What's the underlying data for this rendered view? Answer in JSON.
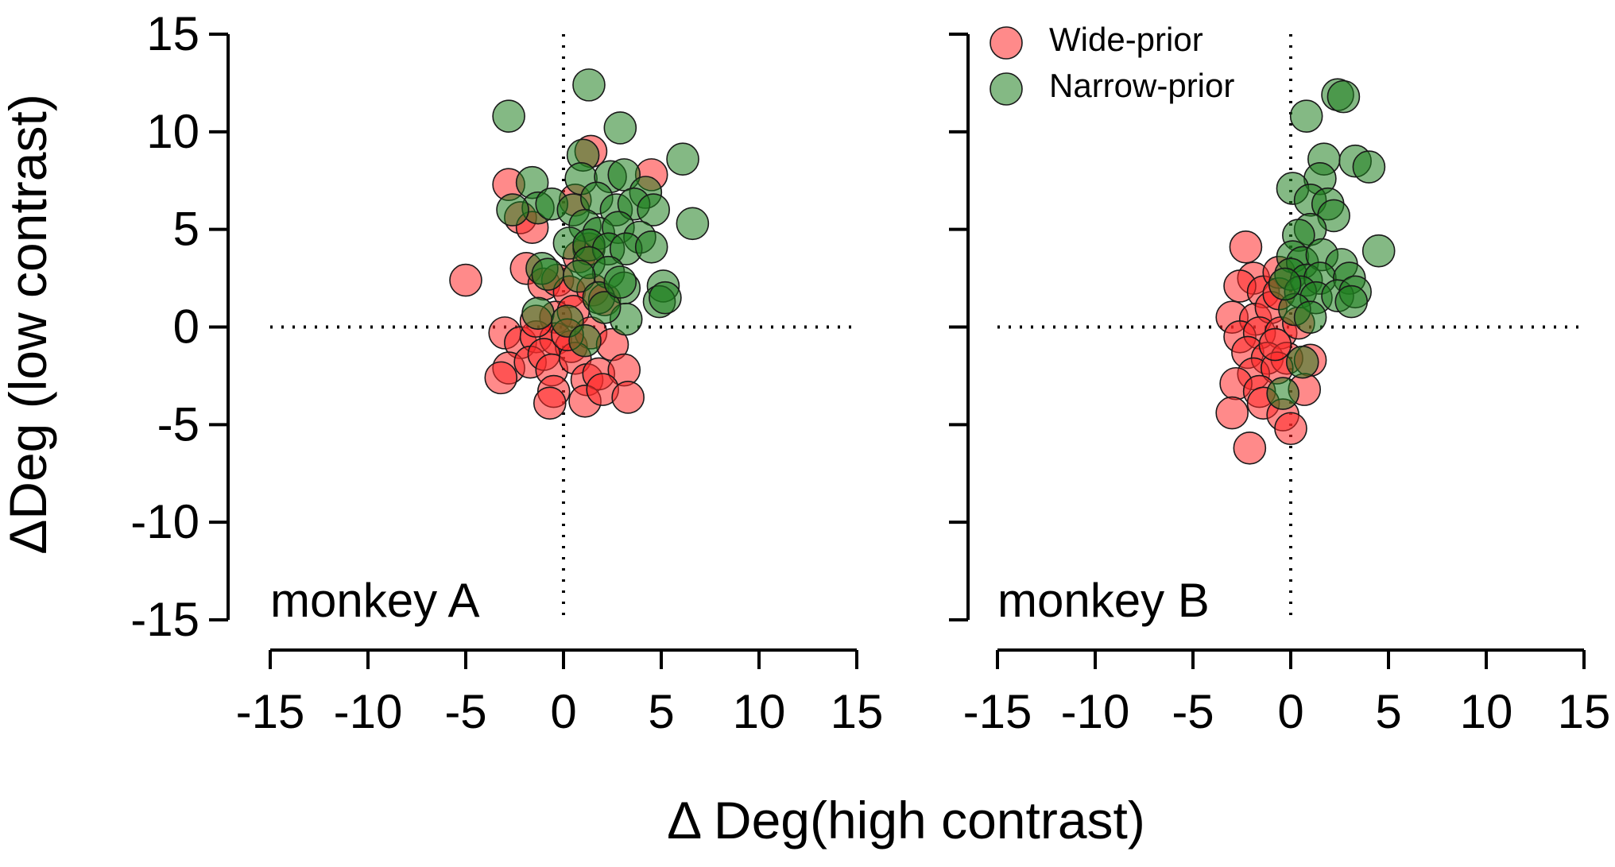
{
  "figure": {
    "ylabel": "ΔDeg (low contrast)",
    "xlabel": "Δ Deg(high contrast)"
  },
  "legend": [
    {
      "label": "Wide-prior",
      "color": "#ff2a2a"
    },
    {
      "label": "Narrow-prior",
      "color": "#1f7f1f"
    }
  ],
  "chart_data": [
    {
      "type": "scatter",
      "title": "monkey A",
      "xlabel": "Δ Deg(high contrast)",
      "ylabel": "ΔDeg (low contrast)",
      "xlim": [
        -15,
        15
      ],
      "ylim": [
        -15,
        15
      ],
      "xticks": [
        -15,
        -10,
        -5,
        0,
        5,
        10,
        15
      ],
      "yticks": [
        -15,
        -10,
        -5,
        0,
        5,
        10,
        15
      ],
      "xtick_labels": [
        "-15",
        "-10",
        "-5",
        "0",
        "5",
        "10",
        "15"
      ],
      "ytick_labels": [
        "-15",
        "-10",
        "-5",
        "0",
        "5",
        "10",
        "15"
      ],
      "reference_lines": {
        "x": 0,
        "y": 0,
        "style": "dotted"
      },
      "series": [
        {
          "name": "Wide-prior",
          "color": "#ff2a2a",
          "points": [
            [
              -5.0,
              2.4
            ],
            [
              -2.8,
              7.3
            ],
            [
              -2.2,
              5.6
            ],
            [
              -1.6,
              5.1
            ],
            [
              -1.9,
              3.0
            ],
            [
              -1.0,
              2.2
            ],
            [
              -0.3,
              2.4
            ],
            [
              0.3,
              1.8
            ],
            [
              0.8,
              3.6
            ],
            [
              1.3,
              4.0
            ],
            [
              4.5,
              7.8
            ],
            [
              1.4,
              9.0
            ],
            [
              0.6,
              6.5
            ],
            [
              1.5,
              1.9
            ],
            [
              2.1,
              1.4
            ],
            [
              -0.4,
              0.5
            ],
            [
              0.5,
              0.8
            ],
            [
              -3.0,
              -0.3
            ],
            [
              -2.2,
              -0.8
            ],
            [
              -1.4,
              -0.5
            ],
            [
              -0.4,
              -0.6
            ],
            [
              0.4,
              -1.0
            ],
            [
              1.4,
              -0.3
            ],
            [
              2.5,
              -0.9
            ],
            [
              -2.8,
              -2.1
            ],
            [
              -1.7,
              -1.8
            ],
            [
              -1.0,
              -1.4
            ],
            [
              -3.2,
              -2.6
            ],
            [
              -0.6,
              -2.2
            ],
            [
              0.6,
              -1.6
            ],
            [
              1.2,
              -2.7
            ],
            [
              1.8,
              -2.4
            ],
            [
              3.1,
              -2.2
            ],
            [
              -0.5,
              -3.3
            ],
            [
              1.1,
              -3.8
            ],
            [
              2.0,
              -3.2
            ],
            [
              3.3,
              -3.6
            ],
            [
              -0.7,
              -3.9
            ],
            [
              -1.4,
              0.3
            ],
            [
              0.2,
              -0.4
            ]
          ]
        },
        {
          "name": "Narrow-prior",
          "color": "#1f7f1f",
          "points": [
            [
              -2.8,
              10.8
            ],
            [
              1.3,
              12.4
            ],
            [
              2.9,
              10.2
            ],
            [
              1.0,
              8.8
            ],
            [
              6.1,
              8.6
            ],
            [
              0.9,
              7.6
            ],
            [
              2.4,
              7.7
            ],
            [
              3.1,
              7.8
            ],
            [
              4.2,
              6.9
            ],
            [
              6.6,
              5.3
            ],
            [
              -1.6,
              7.4
            ],
            [
              -1.3,
              6.1
            ],
            [
              -2.6,
              6.0
            ],
            [
              -0.6,
              6.3
            ],
            [
              0.5,
              6.0
            ],
            [
              1.7,
              6.6
            ],
            [
              2.7,
              6.0
            ],
            [
              3.6,
              6.3
            ],
            [
              4.6,
              6.0
            ],
            [
              1.1,
              5.2
            ],
            [
              1.8,
              4.8
            ],
            [
              2.8,
              5.1
            ],
            [
              3.9,
              4.6
            ],
            [
              0.3,
              4.3
            ],
            [
              1.3,
              4.2
            ],
            [
              2.3,
              4.0
            ],
            [
              3.2,
              4.0
            ],
            [
              4.5,
              4.1
            ],
            [
              1.3,
              3.3
            ],
            [
              2.3,
              2.8
            ],
            [
              3.1,
              2.0
            ],
            [
              5.1,
              2.1
            ],
            [
              -1.1,
              3.0
            ],
            [
              -0.8,
              2.7
            ],
            [
              0.8,
              2.6
            ],
            [
              4.9,
              1.3
            ],
            [
              5.2,
              1.5
            ],
            [
              -1.3,
              0.7
            ],
            [
              0.2,
              0.3
            ],
            [
              3.2,
              0.4
            ],
            [
              1.8,
              1.5
            ],
            [
              1.1,
              -0.7
            ],
            [
              2.1,
              1.0
            ],
            [
              2.9,
              2.3
            ]
          ]
        }
      ]
    },
    {
      "type": "scatter",
      "title": "monkey B",
      "xlabel": "Δ Deg(high contrast)",
      "ylabel": "ΔDeg (low contrast)",
      "xlim": [
        -15,
        15
      ],
      "ylim": [
        -15,
        15
      ],
      "xticks": [
        -15,
        -10,
        -5,
        0,
        5,
        10,
        15
      ],
      "yticks": [
        -15,
        -10,
        -5,
        0,
        5,
        10,
        15
      ],
      "xtick_labels": [
        "-15",
        "-10",
        "-5",
        "0",
        "5",
        "10",
        "15"
      ],
      "ytick_labels": [
        "",
        "",
        "",
        "",
        "",
        "",
        ""
      ],
      "reference_lines": {
        "x": 0,
        "y": 0,
        "style": "dotted"
      },
      "series": [
        {
          "name": "Wide-prior",
          "color": "#ff2a2a",
          "points": [
            [
              -2.3,
              4.1
            ],
            [
              -1.9,
              2.5
            ],
            [
              -2.6,
              2.1
            ],
            [
              -3.0,
              0.5
            ],
            [
              -1.4,
              1.8
            ],
            [
              -0.6,
              2.8
            ],
            [
              -1.8,
              0.4
            ],
            [
              -1.0,
              1.0
            ],
            [
              -2.6,
              -0.5
            ],
            [
              -1.6,
              -0.3
            ],
            [
              -0.5,
              -0.3
            ],
            [
              0.4,
              0.2
            ],
            [
              -2.2,
              -1.3
            ],
            [
              -1.2,
              -1.6
            ],
            [
              -0.2,
              -1.6
            ],
            [
              -1.9,
              -2.4
            ],
            [
              -0.7,
              -2.1
            ],
            [
              -2.8,
              -2.9
            ],
            [
              -1.6,
              -3.3
            ],
            [
              -3.0,
              -4.4
            ],
            [
              -1.4,
              -3.9
            ],
            [
              -0.4,
              -4.5
            ],
            [
              0.0,
              -5.2
            ],
            [
              -2.1,
              -6.2
            ],
            [
              1.0,
              -1.7
            ],
            [
              0.7,
              -3.2
            ],
            [
              -0.6,
              1.7
            ],
            [
              -0.8,
              -0.9
            ]
          ]
        },
        {
          "name": "Narrow-prior",
          "color": "#1f7f1f",
          "points": [
            [
              2.4,
              11.9
            ],
            [
              2.7,
              11.8
            ],
            [
              0.8,
              10.8
            ],
            [
              1.7,
              8.6
            ],
            [
              3.3,
              8.5
            ],
            [
              4.0,
              8.2
            ],
            [
              1.5,
              7.6
            ],
            [
              0.1,
              7.1
            ],
            [
              1.0,
              6.5
            ],
            [
              1.9,
              6.3
            ],
            [
              2.2,
              5.7
            ],
            [
              1.0,
              5.0
            ],
            [
              0.4,
              4.7
            ],
            [
              4.5,
              3.9
            ],
            [
              0.1,
              3.6
            ],
            [
              0.6,
              3.3
            ],
            [
              1.6,
              3.7
            ],
            [
              2.6,
              3.2
            ],
            [
              0.0,
              2.7
            ],
            [
              0.8,
              2.4
            ],
            [
              1.5,
              2.5
            ],
            [
              3.0,
              2.5
            ],
            [
              0.5,
              1.8
            ],
            [
              1.3,
              1.5
            ],
            [
              2.4,
              1.6
            ],
            [
              3.3,
              1.8
            ],
            [
              0.2,
              0.9
            ],
            [
              1.0,
              0.5
            ],
            [
              3.1,
              1.3
            ],
            [
              -0.3,
              2.2
            ],
            [
              0.6,
              -1.8
            ],
            [
              -0.4,
              -3.4
            ]
          ]
        }
      ]
    }
  ]
}
